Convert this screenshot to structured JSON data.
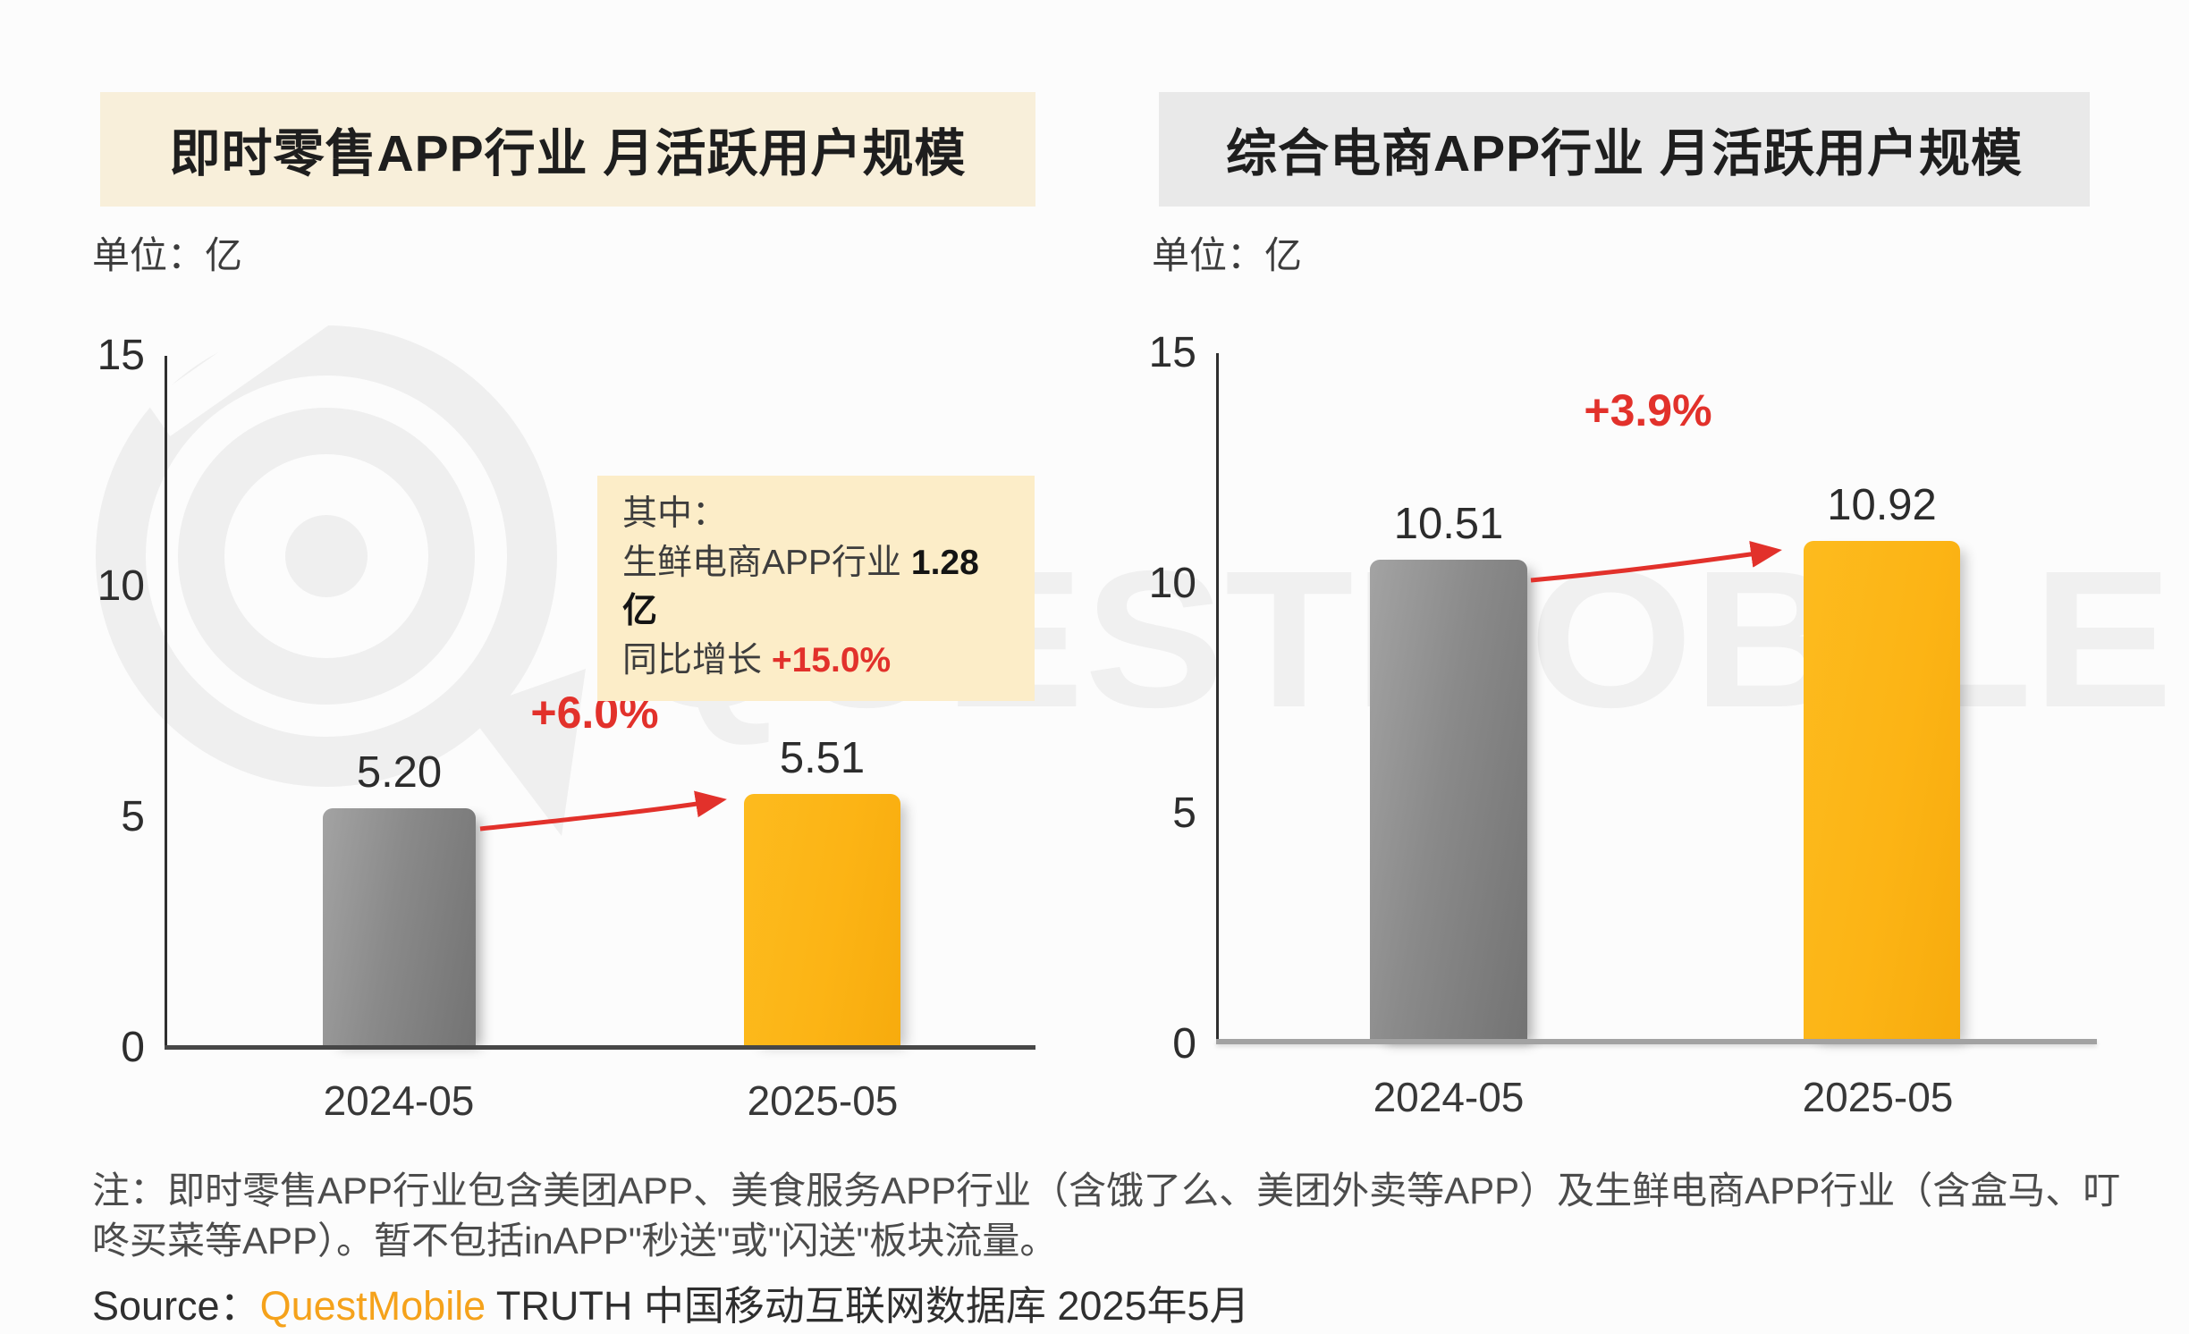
{
  "watermark": {
    "brand_text": "QUESTMOBILE"
  },
  "chart_data": [
    {
      "type": "bar",
      "title": "即时零售APP行业 月活跃用户规模",
      "unit_label": "单位：亿",
      "categories": [
        "2024-05",
        "2025-05"
      ],
      "values": [
        5.2,
        5.51
      ],
      "value_labels": [
        "5.20",
        "5.51"
      ],
      "growth_label": "+6.0%",
      "ylim": [
        0,
        15
      ],
      "y_ticks": [
        "15",
        "10",
        "5",
        "0"
      ],
      "grid": "off",
      "bar_colors": [
        "#8a8a8a",
        "#fcb415"
      ],
      "annotation": {
        "heading": "其中：",
        "line2_text": "生鲜电商APP行业 ",
        "line2_value": "1.28亿",
        "line3_text": "同比增长 ",
        "line3_value": "+15.0%"
      }
    },
    {
      "type": "bar",
      "title": "综合电商APP行业 月活跃用户规模",
      "unit_label": "单位：亿",
      "categories": [
        "2024-05",
        "2025-05"
      ],
      "values": [
        10.51,
        10.92
      ],
      "value_labels": [
        "10.51",
        "10.92"
      ],
      "growth_label": "+3.9%",
      "ylim": [
        0,
        15
      ],
      "y_ticks": [
        "15",
        "10",
        "5",
        "0"
      ],
      "grid": "off",
      "bar_colors": [
        "#8a8a8a",
        "#fcb415"
      ]
    }
  ],
  "footer": {
    "note_line1": "注：即时零售APP行业包含美团APP、美食服务APP行业（含饿了么、美团外卖等APP）及生鲜电商APP行业（含盒马、叮",
    "note_line2": "咚买菜等APP）。暂不包括inAPP\"秒送\"或\"闪送\"板块流量。",
    "source_prefix": "Source：",
    "source_brand": "QuestMobile",
    "source_suffix": " TRUTH 中国移动互联网数据库 2025年5月"
  },
  "colors": {
    "accent_red": "#e2312b",
    "bar_gray": "#8a8a8a",
    "bar_yellow": "#fcb415",
    "title_bg_left": "#f8efda",
    "title_bg_right": "#e9e9e9",
    "annotation_bg": "#fcedc8",
    "brand_orange": "#f5a21b"
  }
}
